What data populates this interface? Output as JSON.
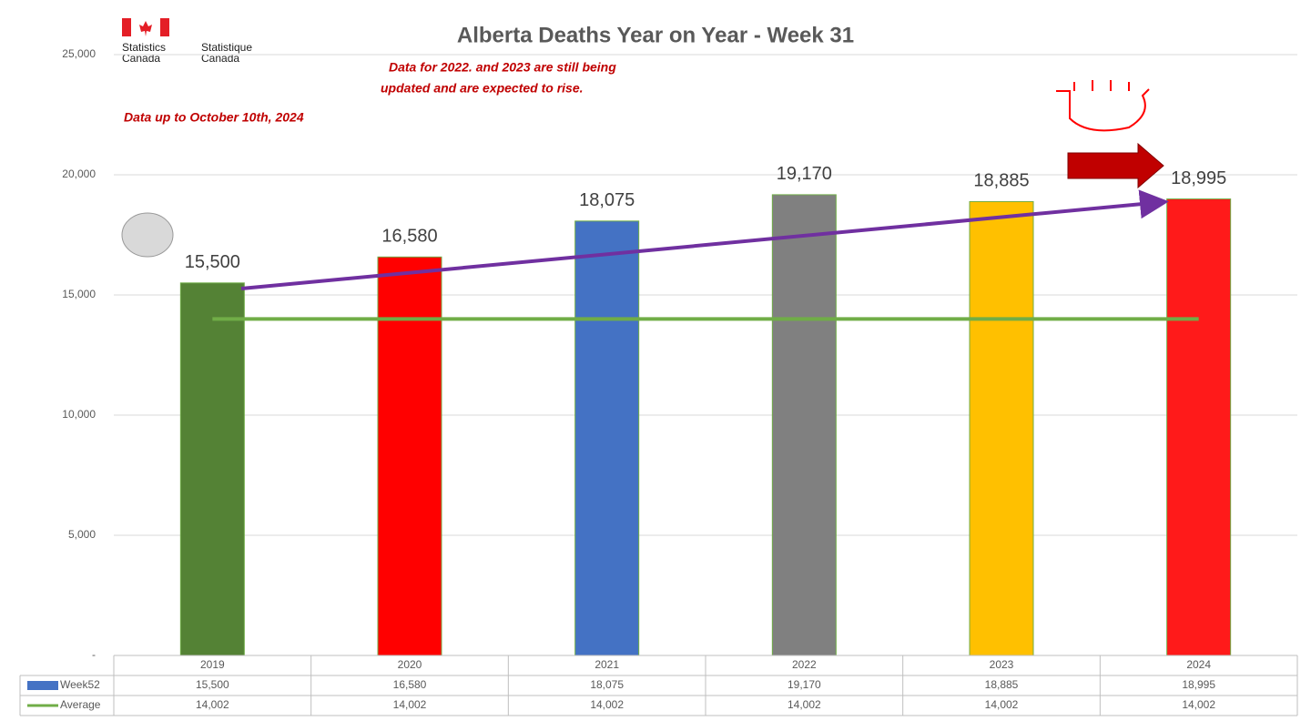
{
  "chart_data": {
    "type": "bar",
    "title": "Alberta Deaths Year on Year - Week 31",
    "logo": {
      "en": [
        "Statistics",
        "Canada"
      ],
      "fr": [
        "Statistique",
        "Canada"
      ]
    },
    "notes": [
      "Data for 2022. and 2023 are still being",
      "updated and are expected to rise.",
      "Data up to October 10th, 2024"
    ],
    "categories": [
      "2019",
      "2020",
      "2021",
      "2022",
      "2023",
      "2024"
    ],
    "series": [
      {
        "name": "Week52",
        "color": "#4472c4",
        "bar_colors": [
          "#548235",
          "#ff0000",
          "#4472c4",
          "#808080",
          "#ffc000",
          "#ff1a1a"
        ],
        "values": [
          15500,
          16580,
          18075,
          19170,
          18885,
          18995
        ],
        "value_labels": [
          "15,500",
          "16,580",
          "18,075",
          "19,170",
          "18,885",
          "18,995"
        ]
      },
      {
        "name": "Average",
        "color": "#70ad47",
        "values": [
          14002,
          14002,
          14002,
          14002,
          14002,
          14002
        ],
        "value_labels": [
          "14,002",
          "14,002",
          "14,002",
          "14,002",
          "14,002",
          "14,002"
        ]
      }
    ],
    "ylim": [
      0,
      25000
    ],
    "yticks": [
      {
        "value": 0,
        "label": "-"
      },
      {
        "value": 5000,
        "label": "5,000"
      },
      {
        "value": 10000,
        "label": "10,000"
      },
      {
        "value": 15000,
        "label": "15,000"
      },
      {
        "value": 20000,
        "label": "20,000"
      },
      {
        "value": 25000,
        "label": "25,000"
      }
    ],
    "grid": true
  }
}
